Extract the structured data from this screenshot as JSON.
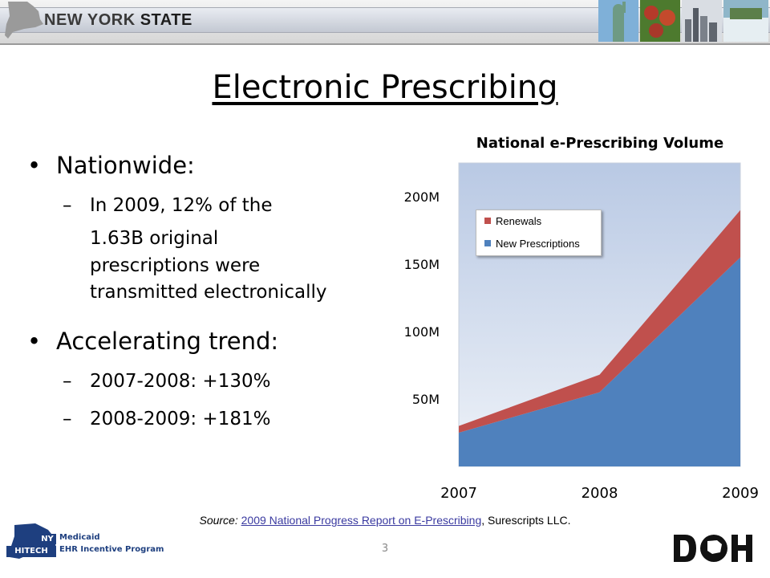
{
  "banner": {
    "title_part1": "NEW YORK ",
    "title_part2": "STATE",
    "photos": [
      "statue-of-liberty-photo",
      "apples-photo",
      "city-skyline-photo",
      "waterfall-photo"
    ]
  },
  "slide": {
    "title": "Electronic Prescribing",
    "bullets": [
      {
        "text": "Nationwide:",
        "sub": [
          {
            "dash": "–",
            "line1": "In 2009, 12% of the",
            "rest": [
              "1.63B original",
              "prescriptions were",
              "transmitted electronically"
            ]
          }
        ]
      },
      {
        "text": "Accelerating trend:",
        "sub": [
          {
            "dash": "–",
            "line1": "2007-2008: +130%"
          },
          {
            "dash": "–",
            "line1": "2008-2009: +181%"
          }
        ]
      }
    ]
  },
  "chart_data": {
    "type": "area",
    "title": "National e-Prescribing Volume",
    "x": [
      "2007",
      "2008",
      "2009"
    ],
    "y_ticks": [
      "50M",
      "100M",
      "150M",
      "200M"
    ],
    "ylim": [
      0,
      225
    ],
    "stacked": true,
    "series": [
      {
        "name": "New Prescriptions",
        "values": [
          25,
          55,
          155
        ],
        "color": "#4f81bd"
      },
      {
        "name": "Renewals",
        "values": [
          5,
          13,
          35
        ],
        "color": "#c0504d"
      }
    ],
    "legend_position": "top-left",
    "legend_order": [
      "Renewals",
      "New Prescriptions"
    ],
    "grid": false
  },
  "source": {
    "prefix": "Source: ",
    "link_text": "2009 National Progress Report on E-Prescribing",
    "suffix": ", Surescripts LLC."
  },
  "footer": {
    "ny": "NY",
    "hitech": "HITECH",
    "medicaid": "Medicaid",
    "ehr": "EHR Incentive Program",
    "page_number": "3",
    "doh_logo": "doh-logo"
  },
  "colors": {
    "renewals": "#c0504d",
    "new_prescriptions": "#4f81bd",
    "footer_blue": "#1e3f7f"
  }
}
